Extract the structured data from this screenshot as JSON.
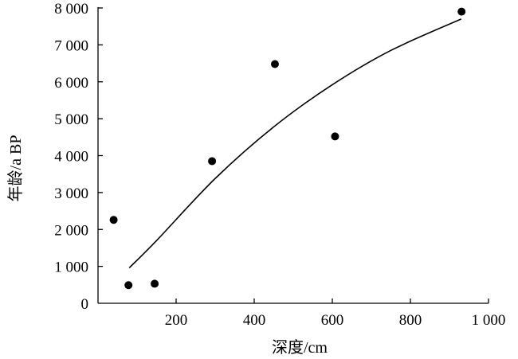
{
  "chart_data": {
    "type": "scatter",
    "xlabel": "深度/cm",
    "ylabel": "年龄/a BP",
    "xlim": [
      0,
      1000
    ],
    "ylim": [
      0,
      8000
    ],
    "x_ticks": [
      {
        "value": 200,
        "label": "200"
      },
      {
        "value": 400,
        "label": "400"
      },
      {
        "value": 600,
        "label": "600"
      },
      {
        "value": 800,
        "label": "800"
      },
      {
        "value": 1000,
        "label": "1 000"
      }
    ],
    "y_ticks": [
      {
        "value": 0,
        "label": "0"
      },
      {
        "value": 1000,
        "label": "1 000"
      },
      {
        "value": 2000,
        "label": "2 000"
      },
      {
        "value": 3000,
        "label": "3 000"
      },
      {
        "value": 4000,
        "label": "4 000"
      },
      {
        "value": 5000,
        "label": "5 000"
      },
      {
        "value": 6000,
        "label": "6 000"
      },
      {
        "value": 7000,
        "label": "7 000"
      },
      {
        "value": 8000,
        "label": "8 000"
      }
    ],
    "grid": false,
    "series": [
      {
        "type": "scatter",
        "x": [
          40,
          78,
          145,
          292,
          453,
          607,
          931
        ],
        "y": [
          2260,
          490,
          530,
          3850,
          6480,
          4520,
          7900
        ]
      },
      {
        "type": "line",
        "x": [
          80,
          150,
          300,
          450,
          600,
          750,
          930
        ],
        "y": [
          960,
          1700,
          3380,
          4780,
          5920,
          6850,
          7700
        ]
      }
    ]
  }
}
